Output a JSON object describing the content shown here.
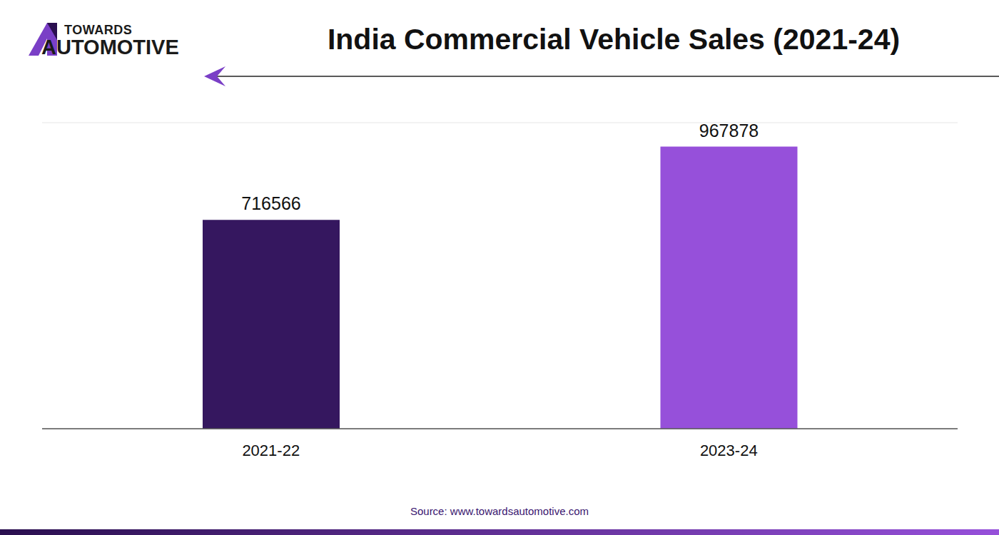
{
  "chart_data": {
    "type": "bar",
    "title": "India Commercial Vehicle Sales (2021-24)",
    "logo": [
      "TOWARDS",
      "AUTOMOTIVE"
    ],
    "source": "Source: www.towardsautomotive.com",
    "categories": [
      "2021-22",
      "2023-24"
    ],
    "values": [
      716566,
      967878
    ],
    "colors": [
      "#35175f",
      "#9650da"
    ],
    "ylim": [
      0,
      1050000
    ],
    "yticks": [
      0,
      150000,
      300000,
      450000,
      600000,
      750000,
      900000,
      1050000
    ],
    "grid": true,
    "data_labels": true,
    "tick_labels": "x"
  }
}
